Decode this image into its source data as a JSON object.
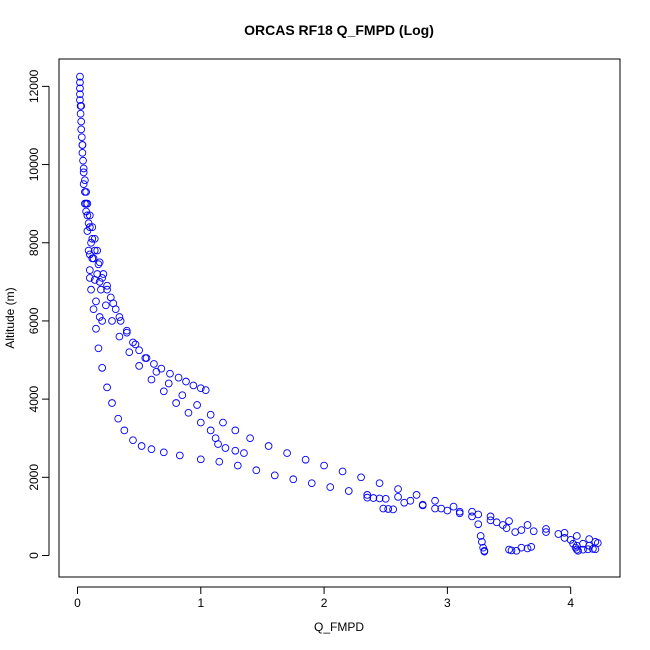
{
  "chart_data": {
    "type": "scatter",
    "title": "ORCAS RF18 Q_FMPD (Log)",
    "xlabel": "Q_FMPD",
    "ylabel": "Altitude (m)",
    "xlim": [
      -0.15,
      4.4
    ],
    "ylim": [
      -550,
      12700
    ],
    "x_ticks": [
      0,
      1,
      2,
      3,
      4
    ],
    "y_ticks": [
      0,
      2000,
      4000,
      6000,
      8000,
      10000,
      12000
    ],
    "grid": false,
    "legend": "none",
    "marker": "open-circle",
    "color": "#0000ff",
    "series": [
      {
        "values": [
          [
            0.02,
            12250
          ],
          [
            0.02,
            12100
          ],
          [
            0.02,
            11950
          ],
          [
            0.02,
            11800
          ],
          [
            0.02,
            11650
          ],
          [
            0.025,
            11500
          ],
          [
            0.025,
            11300
          ],
          [
            0.03,
            11100
          ],
          [
            0.03,
            10900
          ],
          [
            0.035,
            10700
          ],
          [
            0.04,
            10500
          ],
          [
            0.04,
            10300
          ],
          [
            0.045,
            10100
          ],
          [
            0.05,
            9900
          ],
          [
            0.06,
            9600
          ],
          [
            0.07,
            9300
          ],
          [
            0.08,
            9000
          ],
          [
            0.1,
            8700
          ],
          [
            0.12,
            8400
          ],
          [
            0.14,
            8100
          ],
          [
            0.16,
            7800
          ],
          [
            0.18,
            7500
          ],
          [
            0.21,
            7200
          ],
          [
            0.24,
            6900
          ],
          [
            0.27,
            6600
          ],
          [
            0.31,
            6300
          ],
          [
            0.35,
            6000
          ],
          [
            0.4,
            5700
          ],
          [
            0.45,
            5450
          ],
          [
            0.5,
            5250
          ],
          [
            0.56,
            5050
          ],
          [
            0.62,
            4900
          ],
          [
            0.68,
            4780
          ],
          [
            0.75,
            4650
          ],
          [
            0.82,
            4550
          ],
          [
            0.88,
            4450
          ],
          [
            0.94,
            4350
          ],
          [
            1.0,
            4280
          ],
          [
            1.04,
            4230
          ]
        ]
      },
      {
        "values": [
          [
            0.06,
            9000
          ],
          [
            0.08,
            8700
          ],
          [
            0.1,
            8400
          ],
          [
            0.12,
            8100
          ],
          [
            0.14,
            7800
          ],
          [
            0.17,
            7450
          ],
          [
            0.2,
            7100
          ],
          [
            0.24,
            6800
          ],
          [
            0.29,
            6450
          ],
          [
            0.34,
            6100
          ],
          [
            0.4,
            5750
          ],
          [
            0.47,
            5400
          ],
          [
            0.55,
            5050
          ],
          [
            0.64,
            4700
          ],
          [
            0.74,
            4400
          ],
          [
            0.85,
            4100
          ],
          [
            0.97,
            3850
          ],
          [
            1.08,
            3600
          ],
          [
            1.18,
            3400
          ],
          [
            1.28,
            3200
          ],
          [
            1.4,
            3000
          ],
          [
            1.55,
            2800
          ],
          [
            1.7,
            2620
          ],
          [
            1.85,
            2450
          ],
          [
            2.0,
            2300
          ],
          [
            2.15,
            2150
          ],
          [
            2.3,
            2000
          ],
          [
            2.45,
            1850
          ],
          [
            2.6,
            1700
          ],
          [
            2.75,
            1550
          ],
          [
            2.9,
            1400
          ],
          [
            3.05,
            1250
          ],
          [
            3.2,
            1120
          ],
          [
            3.35,
            1000
          ],
          [
            3.5,
            880
          ],
          [
            3.65,
            780
          ],
          [
            3.8,
            680
          ],
          [
            3.95,
            580
          ],
          [
            4.05,
            500
          ],
          [
            4.15,
            420
          ],
          [
            4.2,
            350
          ]
        ]
      },
      {
        "values": [
          [
            0.05,
            9500
          ],
          [
            0.07,
            9000
          ],
          [
            0.09,
            8500
          ],
          [
            0.11,
            8000
          ],
          [
            0.13,
            7600
          ],
          [
            0.16,
            7200
          ],
          [
            0.19,
            6800
          ],
          [
            0.23,
            6400
          ],
          [
            0.28,
            6000
          ],
          [
            0.34,
            5600
          ],
          [
            0.42,
            5200
          ],
          [
            0.5,
            4850
          ],
          [
            0.6,
            4500
          ],
          [
            0.7,
            4200
          ],
          [
            0.8,
            3900
          ],
          [
            0.9,
            3650
          ],
          [
            1.0,
            3400
          ],
          [
            1.08,
            3200
          ],
          [
            1.12,
            3000
          ],
          [
            1.14,
            2850
          ],
          [
            1.2,
            2750
          ],
          [
            1.28,
            2680
          ],
          [
            1.35,
            2620
          ]
        ]
      },
      {
        "values": [
          [
            0.03,
            11500
          ],
          [
            0.04,
            10500
          ],
          [
            0.05,
            9800
          ],
          [
            0.06,
            9300
          ],
          [
            0.07,
            8800
          ],
          [
            0.08,
            8300
          ],
          [
            0.09,
            7800
          ],
          [
            0.1,
            7300
          ],
          [
            0.11,
            6800
          ],
          [
            0.13,
            6300
          ],
          [
            0.15,
            5800
          ],
          [
            0.17,
            5300
          ],
          [
            0.2,
            4800
          ],
          [
            0.24,
            4300
          ],
          [
            0.28,
            3900
          ],
          [
            0.33,
            3500
          ],
          [
            0.38,
            3200
          ],
          [
            0.45,
            2950
          ],
          [
            0.52,
            2800
          ],
          [
            0.6,
            2720
          ],
          [
            0.7,
            2640
          ],
          [
            0.83,
            2560
          ],
          [
            1.0,
            2460
          ],
          [
            1.15,
            2400
          ],
          [
            1.3,
            2300
          ],
          [
            1.45,
            2180
          ],
          [
            1.6,
            2050
          ],
          [
            1.75,
            1950
          ],
          [
            1.9,
            1850
          ],
          [
            2.05,
            1750
          ],
          [
            2.2,
            1650
          ],
          [
            2.35,
            1550
          ],
          [
            2.5,
            1450
          ],
          [
            2.65,
            1350
          ],
          [
            2.8,
            1280
          ],
          [
            2.95,
            1200
          ],
          [
            3.1,
            1120
          ],
          [
            3.25,
            1050
          ]
        ]
      },
      {
        "values": [
          [
            0.1,
            7100
          ],
          [
            0.14,
            7050
          ],
          [
            0.18,
            7000
          ],
          [
            0.15,
            6500
          ],
          [
            0.18,
            6100
          ],
          [
            0.2,
            6000
          ],
          [
            0.1,
            7700
          ],
          [
            0.12,
            7600
          ]
        ]
      },
      {
        "values": [
          [
            2.35,
            1480
          ],
          [
            2.4,
            1470
          ],
          [
            2.45,
            1460
          ],
          [
            2.48,
            1200
          ],
          [
            2.52,
            1190
          ],
          [
            2.56,
            1180
          ],
          [
            2.6,
            1500
          ],
          [
            2.7,
            1400
          ],
          [
            2.8,
            1300
          ],
          [
            2.9,
            1200
          ],
          [
            3.0,
            1150
          ],
          [
            3.1,
            1080
          ],
          [
            3.2,
            1000
          ],
          [
            3.25,
            800
          ],
          [
            3.27,
            500
          ],
          [
            3.28,
            350
          ],
          [
            3.29,
            200
          ],
          [
            3.3,
            120
          ],
          [
            3.3,
            100
          ],
          [
            3.35,
            900
          ],
          [
            3.4,
            850
          ],
          [
            3.45,
            780
          ],
          [
            3.48,
            700
          ],
          [
            3.5,
            150
          ],
          [
            3.52,
            130
          ],
          [
            3.56,
            120
          ],
          [
            3.6,
            200
          ],
          [
            3.65,
            180
          ],
          [
            3.68,
            220
          ],
          [
            3.55,
            600
          ],
          [
            3.6,
            650
          ],
          [
            3.7,
            620
          ],
          [
            3.8,
            600
          ],
          [
            3.9,
            550
          ],
          [
            3.95,
            450
          ],
          [
            4.0,
            400
          ],
          [
            4.02,
            300
          ],
          [
            4.04,
            200
          ],
          [
            4.05,
            150
          ],
          [
            4.06,
            120
          ],
          [
            4.1,
            150
          ],
          [
            4.14,
            160
          ],
          [
            4.18,
            170
          ],
          [
            4.2,
            160
          ],
          [
            4.22,
            320
          ],
          [
            4.1,
            300
          ],
          [
            4.05,
            250
          ],
          [
            4.15,
            250
          ]
        ]
      }
    ]
  }
}
